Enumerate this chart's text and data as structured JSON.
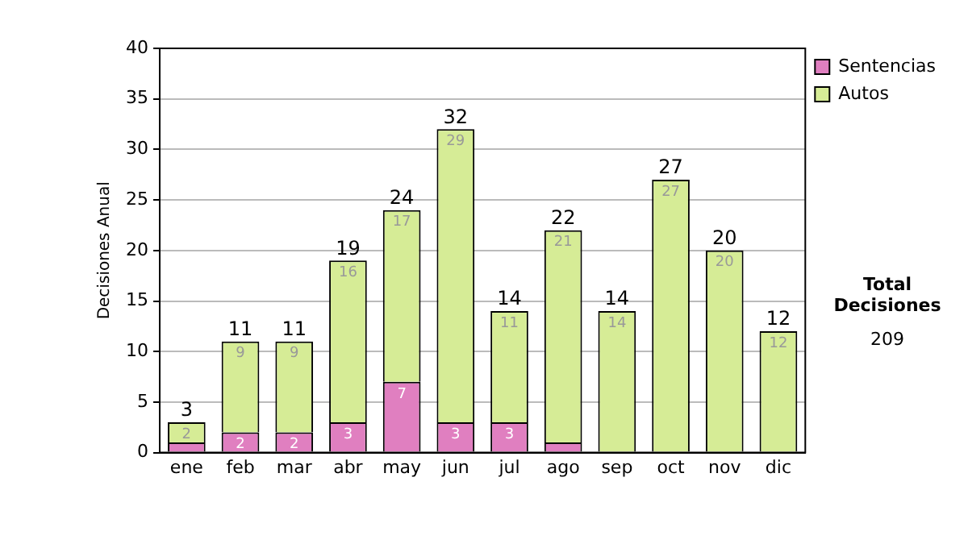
{
  "chart_data": {
    "type": "bar",
    "stacked": true,
    "ylabel": "Decisiones Anual",
    "categories": [
      "ene",
      "feb",
      "mar",
      "abr",
      "may",
      "jun",
      "jul",
      "ago",
      "sep",
      "oct",
      "nov",
      "dic"
    ],
    "series": [
      {
        "name": "Sentencias",
        "color": "#e07fc0",
        "values": [
          1,
          2,
          2,
          3,
          7,
          3,
          3,
          1,
          0,
          0,
          0,
          0
        ],
        "value_labels": [
          null,
          "2",
          "2",
          "3",
          "7",
          "3",
          "3",
          null,
          null,
          null,
          null,
          null
        ]
      },
      {
        "name": "Autos",
        "color": "#d6ec96",
        "values": [
          2,
          9,
          9,
          16,
          17,
          29,
          11,
          21,
          14,
          27,
          20,
          12
        ],
        "value_labels": [
          "2",
          "9",
          "9",
          "16",
          "17",
          "29",
          "11",
          "21",
          "14",
          "27",
          "20",
          "12"
        ]
      }
    ],
    "totals": [
      "3",
      "11",
      "11",
      "19",
      "24",
      "32",
      "14",
      "22",
      "14",
      "27",
      "20",
      "12"
    ],
    "ylim": [
      0,
      40
    ],
    "yticks": [
      0,
      5,
      10,
      15,
      20,
      25,
      30,
      35,
      40
    ],
    "grid": "y",
    "legend": "right",
    "annotations": [
      "Total Decisiones",
      "209"
    ]
  }
}
